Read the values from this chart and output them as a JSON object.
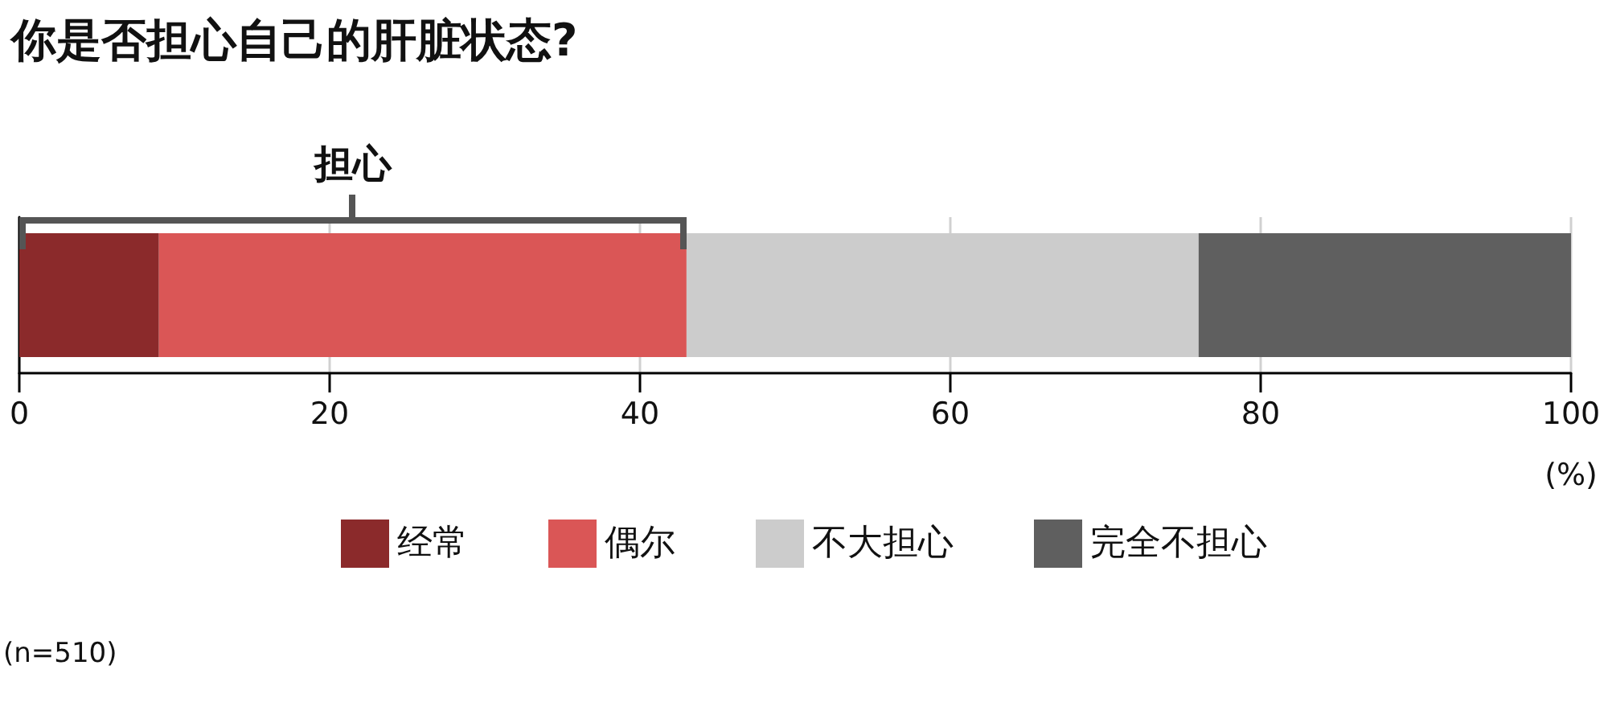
{
  "chart_data": {
    "type": "bar",
    "orientation": "horizontal",
    "stacked": true,
    "title": "你是否担心自己的肝脏状态?",
    "xlabel": "(%)",
    "categories": [
      null
    ],
    "series": [
      {
        "name": "经常",
        "color": "#8b2a2b",
        "values": [
          9
        ]
      },
      {
        "name": "偶尔",
        "color": "#da5656",
        "values": [
          34
        ]
      },
      {
        "name": "不大担心",
        "color": "#cccccc",
        "values": [
          33
        ]
      },
      {
        "name": "完全不担心",
        "color": "#5f5f5f",
        "values": [
          24
        ]
      }
    ],
    "xlim": [
      0,
      100
    ],
    "xticks": [
      0,
      20,
      40,
      60,
      80,
      100
    ],
    "grid": "x",
    "legend": "bottom",
    "annotations": [
      "担心",
      "(n=510)"
    ]
  }
}
